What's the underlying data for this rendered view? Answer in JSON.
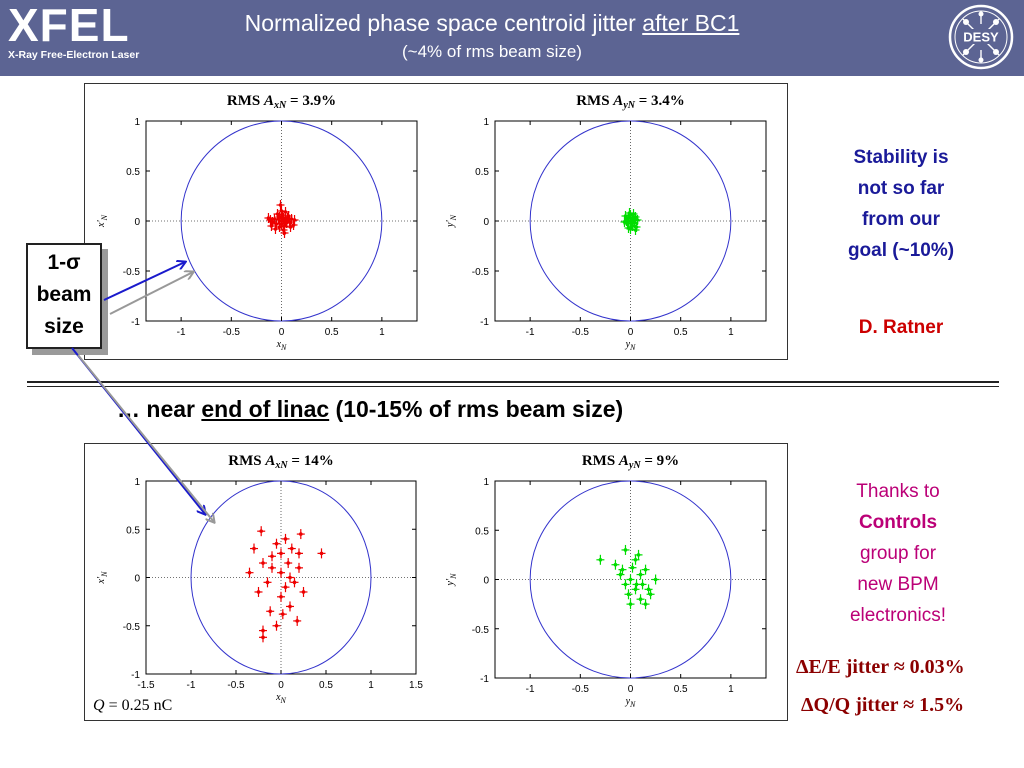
{
  "header": {
    "logo_text": "XFEL",
    "logo_subtitle": "X-Ray Free-Electron Laser",
    "title_prefix": "Normalized phase space centroid jitter ",
    "title_underlined": "after BC1",
    "subtitle": "(~4% of rms beam size)",
    "desy_logo_text": "DESY"
  },
  "colors": {
    "header_bg": "#5c6493",
    "circle": "#3333cc",
    "x_points": "#ee0000",
    "y_points": "#00dd00",
    "stability_text": "#1a1a99",
    "ratner": "#cc0000",
    "thanks": "#bb0077",
    "formula": "#8b0000"
  },
  "sigma_box": {
    "line1": "1-σ",
    "line2": "beam",
    "line3": "size"
  },
  "section2": {
    "prefix": "… near ",
    "underlined": "end of linac",
    "suffix": " (10-15% of rms beam size)"
  },
  "side_notes": {
    "stability": [
      "Stability is",
      "not so far",
      "from our",
      "goal (~10%)"
    ],
    "author": "D. Ratner",
    "thanks": [
      "Thanks to",
      "Controls",
      "group for",
      "new BPM",
      "electronics!"
    ]
  },
  "formulas": {
    "energy": "ΔE/E jitter ≈ 0.03%",
    "charge": "ΔQ/Q jitter ≈ 1.5%"
  },
  "charge_label": "Q = 0.25 nC",
  "chart_data": [
    {
      "type": "scatter",
      "title": "RMS A_xN = 3.9%",
      "title_parts": [
        "RMS A",
        "xN",
        " = 3.9%"
      ],
      "xlabel": "x_N",
      "ylabel": "x'_N",
      "xlim": [
        -1.35,
        1.35
      ],
      "ylim": [
        -1,
        1
      ],
      "xticks": [
        -1,
        -0.5,
        0,
        0.5,
        1
      ],
      "yticks": [
        -1,
        -0.5,
        0,
        0.5,
        1
      ],
      "circle_radius": 1,
      "series_color": "#ee0000",
      "points": [
        [
          0.0,
          0.0
        ],
        [
          0.02,
          0.03
        ],
        [
          -0.03,
          0.02
        ],
        [
          0.05,
          -0.02
        ],
        [
          -0.05,
          -0.03
        ],
        [
          0.01,
          0.06
        ],
        [
          -0.02,
          -0.06
        ],
        [
          0.06,
          0.03
        ],
        [
          -0.07,
          0.02
        ],
        [
          0.03,
          -0.05
        ],
        [
          0.08,
          -0.01
        ],
        [
          -0.09,
          -0.01
        ],
        [
          0.0,
          0.1
        ],
        [
          0.02,
          -0.09
        ],
        [
          -0.04,
          0.07
        ],
        [
          0.1,
          0.02
        ],
        [
          -0.11,
          0.01
        ],
        [
          0.12,
          -0.04
        ],
        [
          -0.1,
          -0.05
        ],
        [
          0.04,
          0.09
        ],
        [
          -0.01,
          0.16
        ],
        [
          0.03,
          -0.12
        ],
        [
          0.07,
          0.05
        ],
        [
          -0.06,
          -0.08
        ],
        [
          0.13,
          0.01
        ],
        [
          -0.13,
          0.03
        ],
        [
          0.0,
          -0.03
        ],
        [
          0.04,
          0.01
        ],
        [
          -0.02,
          0.04
        ],
        [
          0.09,
          -0.06
        ]
      ]
    },
    {
      "type": "scatter",
      "title": "RMS A_yN = 3.4%",
      "title_parts": [
        "RMS A",
        "yN",
        " = 3.4%"
      ],
      "xlabel": "y_N",
      "ylabel": "y'_N",
      "xlim": [
        -1.35,
        1.35
      ],
      "ylim": [
        -1,
        1
      ],
      "xticks": [
        -1,
        -0.5,
        0,
        0.5,
        1
      ],
      "yticks": [
        -1,
        -0.5,
        0,
        0.5,
        1
      ],
      "circle_radius": 1,
      "series_color": "#00dd00",
      "points": [
        [
          0.0,
          0.0
        ],
        [
          -0.02,
          0.03
        ],
        [
          0.01,
          -0.02
        ],
        [
          0.03,
          0.02
        ],
        [
          -0.04,
          0.0
        ],
        [
          0.0,
          0.06
        ],
        [
          0.02,
          -0.05
        ],
        [
          -0.03,
          -0.03
        ],
        [
          0.05,
          0.04
        ],
        [
          0.04,
          -0.02
        ],
        [
          -0.05,
          0.05
        ],
        [
          0.0,
          -0.08
        ],
        [
          0.06,
          -0.06
        ],
        [
          -0.01,
          0.08
        ],
        [
          0.03,
          0.07
        ],
        [
          -0.06,
          -0.01
        ],
        [
          0.07,
          0.01
        ],
        [
          0.02,
          0.03
        ],
        [
          -0.02,
          -0.07
        ],
        [
          0.05,
          -0.09
        ]
      ]
    },
    {
      "type": "scatter",
      "title": "RMS A_xN = 14%",
      "title_parts": [
        "RMS A",
        "xN",
        " = 14%"
      ],
      "xlabel": "x_N",
      "ylabel": "x'_N",
      "xlim": [
        -1.5,
        1.5
      ],
      "ylim": [
        -1,
        1
      ],
      "xticks": [
        -1.5,
        -1,
        -0.5,
        0,
        0.5,
        1,
        1.5
      ],
      "yticks": [
        -1,
        -0.5,
        0,
        0.5,
        1
      ],
      "circle_radius": 1,
      "series_color": "#ee0000",
      "points": [
        [
          -0.22,
          0.48
        ],
        [
          -0.3,
          0.3
        ],
        [
          -0.2,
          0.15
        ],
        [
          0.05,
          0.4
        ],
        [
          0.12,
          0.3
        ],
        [
          0.2,
          0.25
        ],
        [
          0.45,
          0.25
        ],
        [
          -0.35,
          0.05
        ],
        [
          -0.1,
          0.1
        ],
        [
          0.0,
          0.05
        ],
        [
          0.1,
          0.0
        ],
        [
          0.2,
          0.1
        ],
        [
          -0.15,
          -0.05
        ],
        [
          0.05,
          -0.1
        ],
        [
          0.15,
          -0.05
        ],
        [
          -0.25,
          -0.15
        ],
        [
          0.0,
          -0.2
        ],
        [
          0.1,
          -0.3
        ],
        [
          -0.12,
          -0.35
        ],
        [
          0.18,
          -0.45
        ],
        [
          -0.2,
          -0.55
        ],
        [
          -0.05,
          -0.5
        ],
        [
          -0.2,
          -0.62
        ],
        [
          0.0,
          0.25
        ],
        [
          -0.05,
          0.35
        ],
        [
          0.08,
          0.15
        ],
        [
          0.22,
          0.45
        ],
        [
          -0.1,
          0.22
        ],
        [
          0.25,
          -0.15
        ],
        [
          0.02,
          -0.38
        ]
      ]
    },
    {
      "type": "scatter",
      "title": "RMS A_yN = 9%",
      "title_parts": [
        "RMS A",
        "yN",
        " = 9%"
      ],
      "xlabel": "y_N",
      "ylabel": "y'_N",
      "xlim": [
        -1.35,
        1.35
      ],
      "ylim": [
        -1,
        1
      ],
      "xticks": [
        -1,
        -0.5,
        0,
        0.5,
        1
      ],
      "yticks": [
        -1,
        -0.5,
        0,
        0.5,
        1
      ],
      "circle_radius": 1,
      "series_color": "#00dd00",
      "points": [
        [
          -0.3,
          0.2
        ],
        [
          -0.15,
          0.15
        ],
        [
          -0.05,
          0.3
        ],
        [
          0.05,
          0.2
        ],
        [
          -0.1,
          0.05
        ],
        [
          0.0,
          0.0
        ],
        [
          0.1,
          0.05
        ],
        [
          0.15,
          0.1
        ],
        [
          -0.05,
          -0.05
        ],
        [
          0.05,
          -0.1
        ],
        [
          0.12,
          -0.05
        ],
        [
          0.2,
          -0.15
        ],
        [
          0.1,
          -0.2
        ],
        [
          0.0,
          -0.25
        ],
        [
          0.15,
          -0.25
        ],
        [
          0.25,
          0.0
        ],
        [
          -0.08,
          0.1
        ],
        [
          0.02,
          0.12
        ],
        [
          0.18,
          -0.1
        ],
        [
          -0.02,
          -0.15
        ],
        [
          0.08,
          0.25
        ],
        [
          0.06,
          -0.05
        ]
      ]
    }
  ]
}
